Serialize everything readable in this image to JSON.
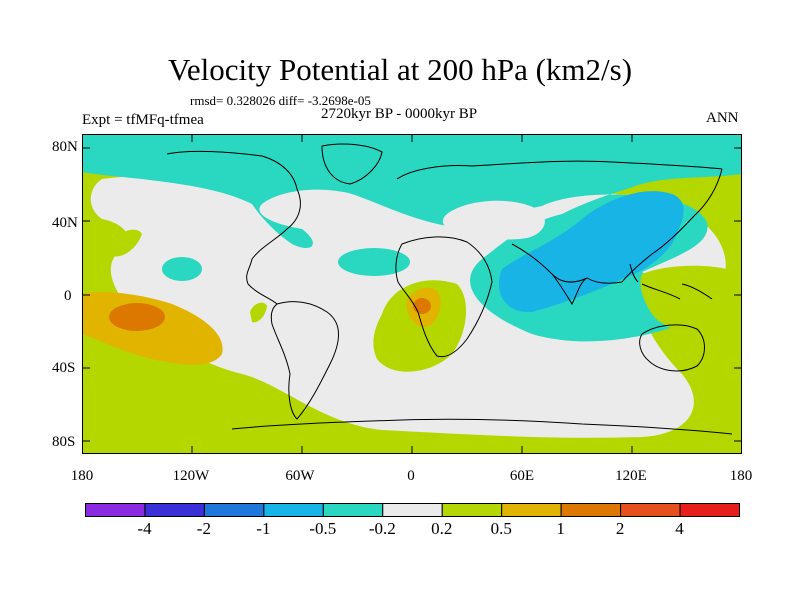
{
  "title": "Velocity Potential at 200 hPa (km2/s)",
  "stats": "rmsd= 0.328026 diff= -3.2698e-05",
  "expt": "Expt = tfMFq-tfmea",
  "period": "2720kyr BP - 0000kyr BP",
  "season": "ANN",
  "lat_labels": [
    "80N",
    "40N",
    "0",
    "40S",
    "80S"
  ],
  "lon_labels": [
    "180",
    "120W",
    "60W",
    "0",
    "60E",
    "120E",
    "180"
  ],
  "colorbar": {
    "colors": [
      "#8a2be2",
      "#3b2fd8",
      "#1e78dc",
      "#19b4e6",
      "#2ad7c0",
      "#ebebeb",
      "#b4d700",
      "#e1b400",
      "#dc7800",
      "#e6501e",
      "#e61e1e"
    ],
    "labels": [
      "-4",
      "-2",
      "-1",
      "-0.5",
      "-0.2",
      "0.2",
      "0.5",
      "1",
      "2",
      "4"
    ]
  },
  "palette": {
    "neutral": "#ebebeb",
    "teal": "#2ad7c0",
    "cyan": "#19b4e6",
    "lime": "#b4d700",
    "orange": "#e1b400",
    "dark_orange": "#dc7800"
  }
}
